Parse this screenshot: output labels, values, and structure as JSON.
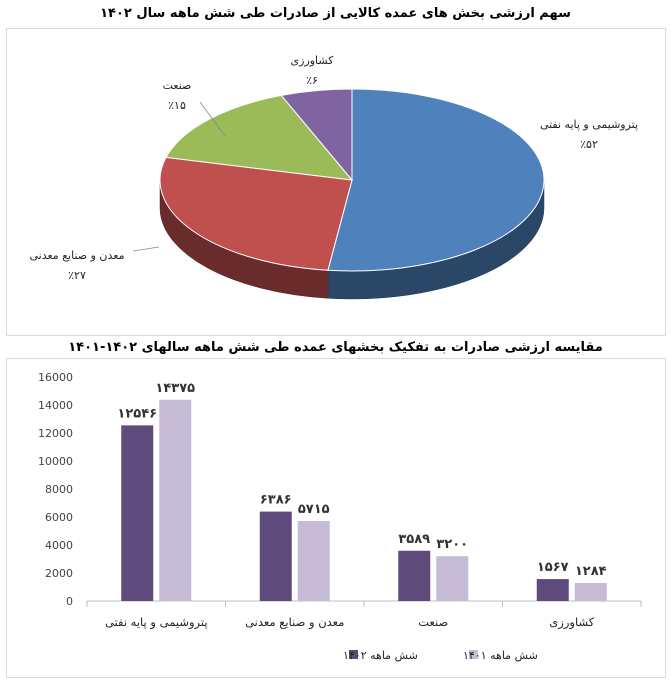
{
  "chart_data": [
    {
      "type": "pie",
      "title": "سهم ارزشی بخش های عمده کالایی از صادرات طی شش ماهه سال ۱۴۰۲",
      "slices": [
        {
          "label": "پتروشیمی و پایه نفتی",
          "value": 52,
          "value_label": "٪۵۲",
          "color": "#4f81bd"
        },
        {
          "label": "معدن و صنایع معدنی",
          "value": 27,
          "value_label": "٪۲۷",
          "color": "#c0504d"
        },
        {
          "label": "صنعت",
          "value": 15,
          "value_label": "٪۱۵",
          "color": "#9bbb59"
        },
        {
          "label": "کشاورزی",
          "value": 6,
          "value_label": "٪۶",
          "color": "#8064a2"
        }
      ]
    },
    {
      "type": "bar",
      "title": "مقایسه ارزشی صادرات به تفکیک بخشهای عمده طی شش ماهه سالهای ۱۴۰۲-۱۴۰۱",
      "categories": [
        "پتروشیمی و پایه نفتی",
        "معدن و صنایع معدنی",
        "صنعت",
        "کشاورزی"
      ],
      "series": [
        {
          "name": "شش ماهه ۱۴۰۲",
          "color": "#5f4b7b",
          "values": [
            12546,
            6386,
            3589,
            1567
          ],
          "labels": [
            "۱۲۵۴۶",
            "۶۳۸۶",
            "۳۵۸۹",
            "۱۵۶۷"
          ]
        },
        {
          "name": "شش ماهه ۱۴۰۱",
          "color": "#c6bcd8",
          "values": [
            14375,
            5715,
            3200,
            1284
          ],
          "labels": [
            "۱۴۳۷۵",
            "۵۷۱۵",
            "۳۲۰۰",
            "۱۲۸۴"
          ]
        }
      ],
      "ylim": [
        0,
        16000
      ],
      "yticks": [
        "0",
        "2000",
        "4000",
        "6000",
        "8000",
        "10000",
        "12000",
        "14000",
        "16000"
      ],
      "grid": false,
      "legend": "bottom"
    }
  ]
}
